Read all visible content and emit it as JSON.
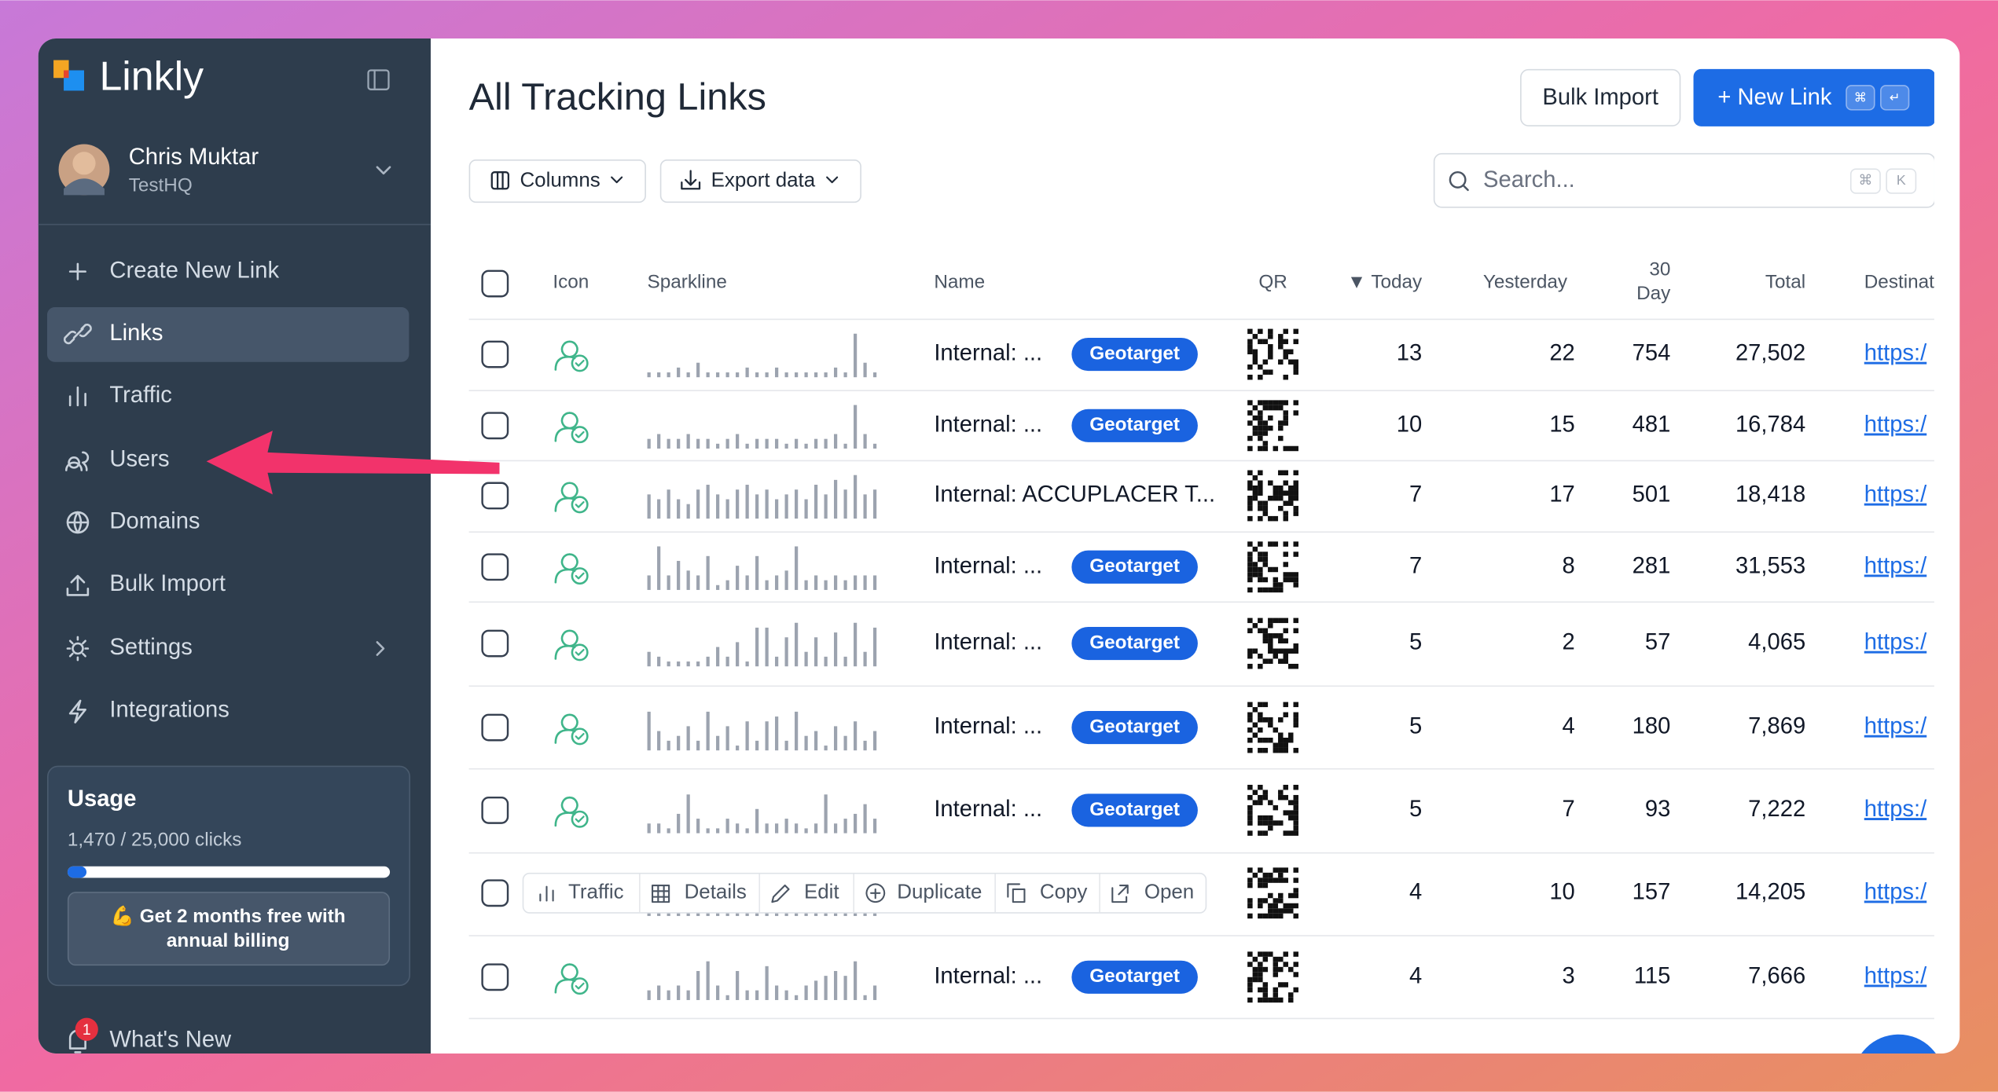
{
  "sidebar": {
    "brand": "Linkly",
    "user": {
      "name": "Chris Muktar",
      "team": "TestHQ"
    },
    "menu": [
      "Create New Link",
      "Links",
      "Traffic",
      "Users",
      "Domains",
      "Bulk Import",
      "Settings",
      "Integrations"
    ],
    "usage": {
      "title": "Usage",
      "clicks_label": "1,470 / 25,000 clicks",
      "used": 1470,
      "limit": 25000,
      "promo": [
        "💪 Get 2 months free with",
        "annual billing"
      ]
    },
    "whats_new": "What's New",
    "notification_count": "1"
  },
  "header": {
    "title": "All Tracking Links",
    "bulk_import": "Bulk Import",
    "new_link": "+ New Link",
    "shortcut": [
      "⌘",
      "↵"
    ],
    "columns": "Columns",
    "export": "Export data",
    "search_placeholder": "Search...",
    "search_shortcut": [
      "⌘",
      "K"
    ]
  },
  "table": {
    "columns": {
      "icon": "Icon",
      "sparkline": "Sparkline",
      "name": "Name",
      "qr": "QR",
      "today": "▼ Today",
      "yesterday": "Yesterday",
      "thirty_day": [
        "30",
        "Day"
      ],
      "total": "Total",
      "destination": "Destinat"
    },
    "rows": [
      {
        "name": "Internal: ...",
        "badge": "Geotarget",
        "today": 13,
        "yesterday": 22,
        "thirty_day": 754,
        "total": "27,502",
        "destination": "https:/",
        "sparkline": [
          1,
          1,
          1,
          2,
          1,
          3,
          1,
          1,
          1,
          1,
          2,
          1,
          1,
          2,
          1,
          1,
          1,
          1,
          1,
          2,
          1,
          9,
          3,
          1
        ]
      },
      {
        "name": "Internal: ...",
        "badge": "Geotarget",
        "today": 10,
        "yesterday": 15,
        "thirty_day": 481,
        "total": "16,784",
        "destination": "https:/",
        "sparkline": [
          2,
          3,
          2,
          2,
          3,
          2,
          2,
          1,
          2,
          3,
          1,
          2,
          2,
          2,
          1,
          2,
          1,
          2,
          2,
          3,
          1,
          9,
          3,
          1
        ]
      },
      {
        "name": "Internal: ACCUPLACER T...",
        "today": 7,
        "yesterday": 17,
        "thirty_day": 501,
        "total": "18,418",
        "destination": "https:/",
        "sparkline": [
          5,
          4,
          6,
          4,
          3,
          6,
          7,
          5,
          4,
          6,
          7,
          5,
          6,
          4,
          5,
          6,
          4,
          7,
          5,
          8,
          6,
          9,
          5,
          6
        ]
      },
      {
        "name": "Internal: ...",
        "badge": "Geotarget",
        "today": 7,
        "yesterday": 8,
        "thirty_day": 281,
        "total": "31,553",
        "destination": "https:/",
        "sparkline": [
          3,
          9,
          3,
          6,
          4,
          3,
          7,
          1,
          2,
          5,
          3,
          7,
          2,
          3,
          4,
          9,
          2,
          3,
          2,
          3,
          2,
          3,
          3,
          3
        ]
      },
      {
        "name": "Internal: ...",
        "badge": "Geotarget",
        "today": 5,
        "yesterday": 2,
        "thirty_day": 57,
        "total": "4,065",
        "destination": "https:/",
        "sparkline": [
          3,
          2,
          1,
          1,
          1,
          1,
          2,
          4,
          2,
          5,
          1,
          8,
          8,
          2,
          6,
          9,
          3,
          6,
          2,
          7,
          2,
          9,
          3,
          8
        ]
      },
      {
        "name": "Internal: ...",
        "badge": "Geotarget",
        "today": 5,
        "yesterday": 4,
        "thirty_day": 180,
        "total": "7,869",
        "destination": "https:/",
        "sparkline": [
          8,
          4,
          2,
          3,
          5,
          2,
          8,
          3,
          5,
          1,
          6,
          2,
          6,
          7,
          2,
          8,
          3,
          4,
          1,
          5,
          3,
          6,
          2,
          4
        ]
      },
      {
        "name": "Internal: ...",
        "badge": "Geotarget",
        "today": 5,
        "yesterday": 7,
        "thirty_day": 93,
        "total": "7,222",
        "destination": "https:/",
        "sparkline": [
          2,
          2,
          1,
          4,
          8,
          3,
          1,
          1,
          3,
          2,
          1,
          5,
          2,
          2,
          3,
          2,
          1,
          2,
          8,
          2,
          3,
          4,
          6,
          3
        ]
      },
      {
        "today": 4,
        "yesterday": 10,
        "thirty_day": 157,
        "total": "14,205",
        "destination": "https:/",
        "sparkline": [
          2,
          2,
          2,
          2,
          2,
          2,
          2,
          2,
          2,
          2,
          2,
          2,
          2,
          2,
          2,
          2,
          2,
          2,
          2,
          2,
          2,
          2,
          2,
          2
        ]
      },
      {
        "name": "Internal: ...",
        "badge": "Geotarget",
        "today": 4,
        "yesterday": 3,
        "thirty_day": 115,
        "total": "7,666",
        "destination": "https:/",
        "sparkline": [
          2,
          3,
          2,
          3,
          2,
          6,
          8,
          3,
          1,
          6,
          2,
          2,
          7,
          3,
          2,
          1,
          3,
          4,
          5,
          6,
          5,
          8,
          1,
          3
        ]
      }
    ]
  },
  "row_actions": [
    "Traffic",
    "Details",
    "Edit",
    "Duplicate",
    "Copy",
    "Open"
  ]
}
